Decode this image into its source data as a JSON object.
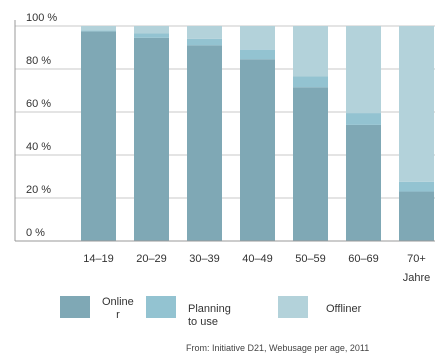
{
  "chart_data": {
    "type": "bar",
    "stacked": true,
    "categories": [
      "14–19",
      "20–29",
      "30–39",
      "40–49",
      "50–59",
      "60–69",
      "70+ Jahre"
    ],
    "series": [
      {
        "name": "Online r",
        "color": "#7fa8b5",
        "values": [
          97.5,
          94.5,
          91,
          84.5,
          71.5,
          54,
          23
        ]
      },
      {
        "name": "Planning to use",
        "color": "#93c3d1",
        "values": [
          0.5,
          2,
          3,
          4.5,
          5,
          5.5,
          4.5
        ]
      },
      {
        "name": "Offliner",
        "color": "#b3d2da",
        "values": [
          2,
          3.5,
          6,
          11,
          23.5,
          40.5,
          72.5
        ]
      }
    ],
    "yticks": [
      "0 %",
      "20 %",
      "40 %",
      "60 %",
      "80 %",
      "100 %"
    ],
    "ylim": [
      0,
      100
    ],
    "grid": true,
    "legend": "bottom"
  },
  "legend": {
    "online": "Online\nr",
    "planning": "Planning to use",
    "offliner": "Offliner"
  },
  "source": "From: Initiative D21, Webusage per age, 2011"
}
